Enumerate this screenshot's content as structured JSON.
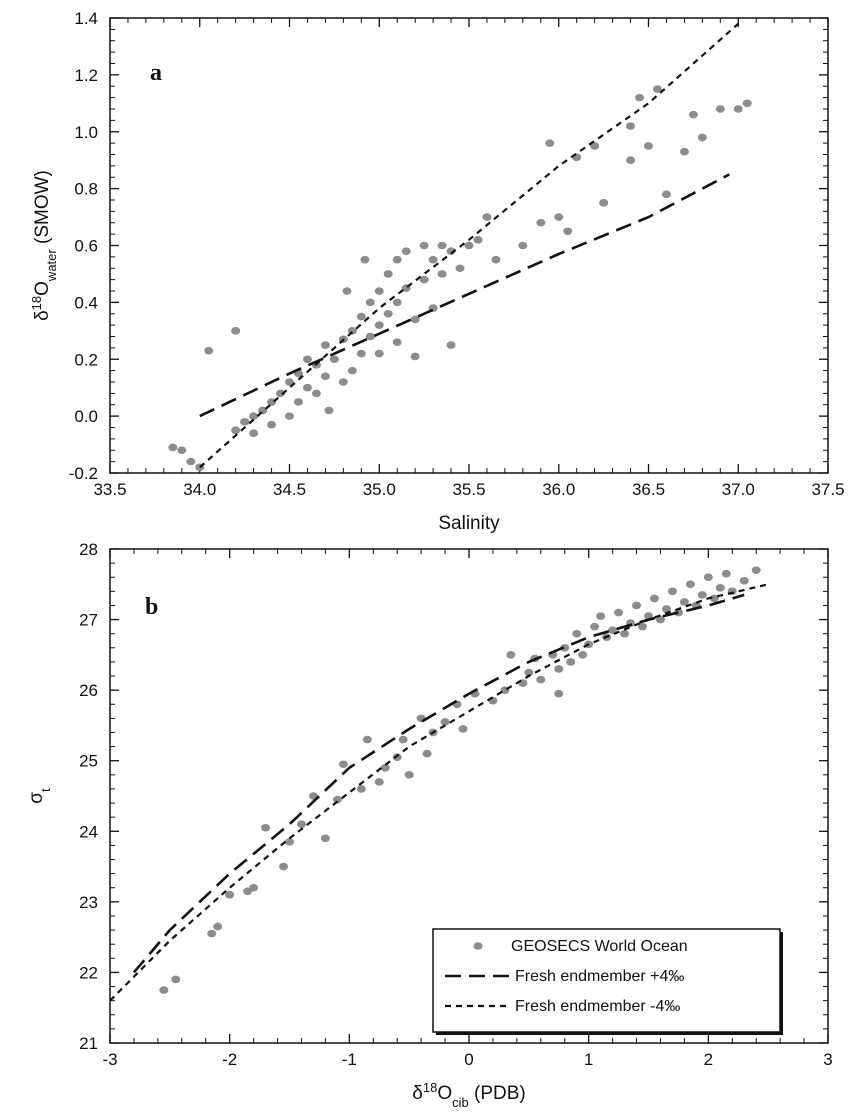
{
  "chart_data": [
    {
      "type": "scatter",
      "panel_label": "a",
      "xlabel": "Salinity",
      "ylabel": "δ¹⁸O_water (SMOW)",
      "ylabel_parts": {
        "delta": "δ",
        "sup": "18",
        "main": "O",
        "sub": "water",
        "suffix": " (SMOW)"
      },
      "xlim": [
        33.5,
        37.5
      ],
      "ylim": [
        -0.2,
        1.4
      ],
      "xticks": [
        "33.5",
        "34.0",
        "34.5",
        "35.0",
        "35.5",
        "36.0",
        "36.5",
        "37.0",
        "37.5"
      ],
      "yticks": [
        "-0.2",
        "0.0",
        "0.2",
        "0.4",
        "0.6",
        "0.8",
        "1.0",
        "1.2",
        "1.4"
      ],
      "grid": false,
      "series": [
        {
          "style": "points",
          "color": "#8c8c8c",
          "points": [
            [
              33.85,
              -0.11
            ],
            [
              33.9,
              -0.12
            ],
            [
              33.95,
              -0.16
            ],
            [
              34.0,
              -0.18
            ],
            [
              34.05,
              0.23
            ],
            [
              34.2,
              0.3
            ],
            [
              34.2,
              -0.05
            ],
            [
              34.25,
              -0.02
            ],
            [
              34.3,
              0.0
            ],
            [
              34.3,
              -0.06
            ],
            [
              34.35,
              0.02
            ],
            [
              34.4,
              0.05
            ],
            [
              34.4,
              -0.03
            ],
            [
              34.45,
              0.08
            ],
            [
              34.5,
              0.12
            ],
            [
              34.5,
              0.0
            ],
            [
              34.55,
              0.15
            ],
            [
              34.55,
              0.05
            ],
            [
              34.6,
              0.2
            ],
            [
              34.6,
              0.1
            ],
            [
              34.65,
              0.18
            ],
            [
              34.65,
              0.08
            ],
            [
              34.7,
              0.25
            ],
            [
              34.7,
              0.14
            ],
            [
              34.72,
              0.02
            ],
            [
              34.75,
              0.2
            ],
            [
              34.8,
              0.27
            ],
            [
              34.8,
              0.12
            ],
            [
              34.82,
              0.44
            ],
            [
              34.85,
              0.3
            ],
            [
              34.85,
              0.16
            ],
            [
              34.9,
              0.35
            ],
            [
              34.9,
              0.22
            ],
            [
              34.92,
              0.55
            ],
            [
              34.95,
              0.4
            ],
            [
              34.95,
              0.28
            ],
            [
              35.0,
              0.44
            ],
            [
              35.0,
              0.32
            ],
            [
              35.0,
              0.22
            ],
            [
              35.05,
              0.5
            ],
            [
              35.05,
              0.36
            ],
            [
              35.1,
              0.55
            ],
            [
              35.1,
              0.4
            ],
            [
              35.1,
              0.26
            ],
            [
              35.15,
              0.58
            ],
            [
              35.15,
              0.45
            ],
            [
              35.2,
              0.34
            ],
            [
              35.2,
              0.21
            ],
            [
              35.25,
              0.6
            ],
            [
              35.25,
              0.48
            ],
            [
              35.3,
              0.55
            ],
            [
              35.3,
              0.38
            ],
            [
              35.35,
              0.6
            ],
            [
              35.35,
              0.5
            ],
            [
              35.4,
              0.58
            ],
            [
              35.4,
              0.25
            ],
            [
              35.45,
              0.52
            ],
            [
              35.5,
              0.6
            ],
            [
              35.55,
              0.62
            ],
            [
              35.6,
              0.7
            ],
            [
              35.65,
              0.55
            ],
            [
              35.8,
              0.6
            ],
            [
              35.9,
              0.68
            ],
            [
              35.95,
              0.96
            ],
            [
              36.0,
              0.7
            ],
            [
              36.05,
              0.65
            ],
            [
              36.1,
              0.91
            ],
            [
              36.2,
              0.95
            ],
            [
              36.25,
              0.75
            ],
            [
              36.4,
              1.02
            ],
            [
              36.4,
              0.9
            ],
            [
              36.45,
              1.12
            ],
            [
              36.5,
              0.95
            ],
            [
              36.6,
              0.78
            ],
            [
              36.7,
              0.93
            ],
            [
              36.75,
              1.06
            ],
            [
              36.8,
              0.98
            ],
            [
              36.9,
              1.08
            ],
            [
              37.0,
              1.08
            ],
            [
              37.05,
              1.1
            ],
            [
              36.55,
              1.15
            ]
          ]
        },
        {
          "style": "long-dash",
          "color": "#111111",
          "points": [
            [
              34.0,
              0.0
            ],
            [
              34.5,
              0.15
            ],
            [
              35.0,
              0.29
            ],
            [
              35.5,
              0.43
            ],
            [
              36.0,
              0.57
            ],
            [
              36.5,
              0.7
            ],
            [
              36.95,
              0.85
            ]
          ]
        },
        {
          "style": "short-dash",
          "color": "#111111",
          "points": [
            [
              34.0,
              -0.18
            ],
            [
              34.5,
              0.1
            ],
            [
              35.0,
              0.38
            ],
            [
              35.5,
              0.62
            ],
            [
              36.0,
              0.88
            ],
            [
              36.5,
              1.1
            ],
            [
              37.0,
              1.38
            ]
          ]
        }
      ]
    },
    {
      "type": "scatter",
      "panel_label": "b",
      "xlabel": "δ¹⁸O_cib (PDB)",
      "xlabel_parts": {
        "delta": "δ",
        "sup": "18",
        "main": "O",
        "sub": "cib",
        "suffix": " (PDB)"
      },
      "ylabel": "σ_t",
      "ylabel_parts": {
        "main": "σ",
        "sub": "t"
      },
      "xlim": [
        -3,
        3
      ],
      "ylim": [
        21,
        28
      ],
      "xticks": [
        "-3",
        "-2",
        "-1",
        "0",
        "1",
        "2",
        "3"
      ],
      "yticks": [
        "21",
        "22",
        "23",
        "24",
        "25",
        "26",
        "27",
        "28"
      ],
      "grid": false,
      "legend_position": "bottom-right",
      "series": [
        {
          "name": "GEOSECS World Ocean",
          "style": "points",
          "color": "#8c8c8c",
          "points": [
            [
              -2.55,
              21.75
            ],
            [
              -2.45,
              21.9
            ],
            [
              -2.15,
              22.55
            ],
            [
              -2.1,
              22.65
            ],
            [
              -2.0,
              23.1
            ],
            [
              -1.85,
              23.15
            ],
            [
              -1.8,
              23.2
            ],
            [
              -1.7,
              24.05
            ],
            [
              -1.55,
              23.5
            ],
            [
              -1.5,
              23.85
            ],
            [
              -1.4,
              24.1
            ],
            [
              -1.3,
              24.5
            ],
            [
              -1.2,
              23.9
            ],
            [
              -1.1,
              24.45
            ],
            [
              -1.05,
              24.95
            ],
            [
              -0.9,
              24.6
            ],
            [
              -0.85,
              25.3
            ],
            [
              -0.75,
              24.7
            ],
            [
              -0.7,
              24.9
            ],
            [
              -0.6,
              25.05
            ],
            [
              -0.55,
              25.3
            ],
            [
              -0.5,
              24.8
            ],
            [
              -0.4,
              25.6
            ],
            [
              -0.35,
              25.1
            ],
            [
              -0.3,
              25.4
            ],
            [
              -0.2,
              25.55
            ],
            [
              -0.1,
              25.8
            ],
            [
              -0.05,
              25.45
            ],
            [
              0.05,
              25.95
            ],
            [
              0.2,
              25.85
            ],
            [
              0.3,
              26.0
            ],
            [
              0.35,
              26.5
            ],
            [
              0.45,
              26.1
            ],
            [
              0.5,
              26.25
            ],
            [
              0.55,
              26.45
            ],
            [
              0.6,
              26.15
            ],
            [
              0.7,
              26.5
            ],
            [
              0.75,
              26.3
            ],
            [
              0.8,
              26.6
            ],
            [
              0.85,
              26.4
            ],
            [
              0.9,
              26.8
            ],
            [
              0.95,
              26.5
            ],
            [
              1.0,
              26.65
            ],
            [
              1.05,
              26.9
            ],
            [
              1.1,
              27.05
            ],
            [
              1.15,
              26.75
            ],
            [
              1.2,
              26.85
            ],
            [
              1.25,
              27.1
            ],
            [
              1.3,
              26.8
            ],
            [
              1.35,
              26.95
            ],
            [
              1.4,
              27.2
            ],
            [
              1.45,
              26.9
            ],
            [
              1.5,
              27.05
            ],
            [
              1.55,
              27.3
            ],
            [
              1.6,
              27.0
            ],
            [
              1.65,
              27.15
            ],
            [
              1.7,
              27.4
            ],
            [
              1.75,
              27.1
            ],
            [
              1.8,
              27.25
            ],
            [
              1.85,
              27.5
            ],
            [
              1.9,
              27.2
            ],
            [
              1.95,
              27.35
            ],
            [
              2.0,
              27.6
            ],
            [
              2.05,
              27.3
            ],
            [
              2.1,
              27.45
            ],
            [
              2.15,
              27.65
            ],
            [
              2.2,
              27.4
            ],
            [
              2.3,
              27.55
            ],
            [
              2.4,
              27.7
            ],
            [
              0.75,
              25.95
            ]
          ]
        },
        {
          "name": "Fresh endmember +4‰",
          "style": "long-dash",
          "color": "#111111",
          "points": [
            [
              -2.8,
              22.0
            ],
            [
              -2.5,
              22.6
            ],
            [
              -2.0,
              23.4
            ],
            [
              -1.5,
              24.1
            ],
            [
              -1.0,
              24.9
            ],
            [
              -0.5,
              25.45
            ],
            [
              0.0,
              25.95
            ],
            [
              0.5,
              26.4
            ],
            [
              1.0,
              26.75
            ],
            [
              1.5,
              27.0
            ],
            [
              2.0,
              27.2
            ],
            [
              2.3,
              27.35
            ]
          ]
        },
        {
          "name": "Fresh endmember -4‰",
          "style": "short-dash",
          "color": "#111111",
          "points": [
            [
              -3.0,
              21.6
            ],
            [
              -2.5,
              22.45
            ],
            [
              -2.0,
              23.2
            ],
            [
              -1.5,
              23.9
            ],
            [
              -1.0,
              24.55
            ],
            [
              -0.5,
              25.2
            ],
            [
              0.0,
              25.7
            ],
            [
              0.5,
              26.2
            ],
            [
              1.0,
              26.65
            ],
            [
              1.5,
              27.0
            ],
            [
              2.0,
              27.3
            ],
            [
              2.5,
              27.5
            ]
          ]
        }
      ]
    }
  ]
}
